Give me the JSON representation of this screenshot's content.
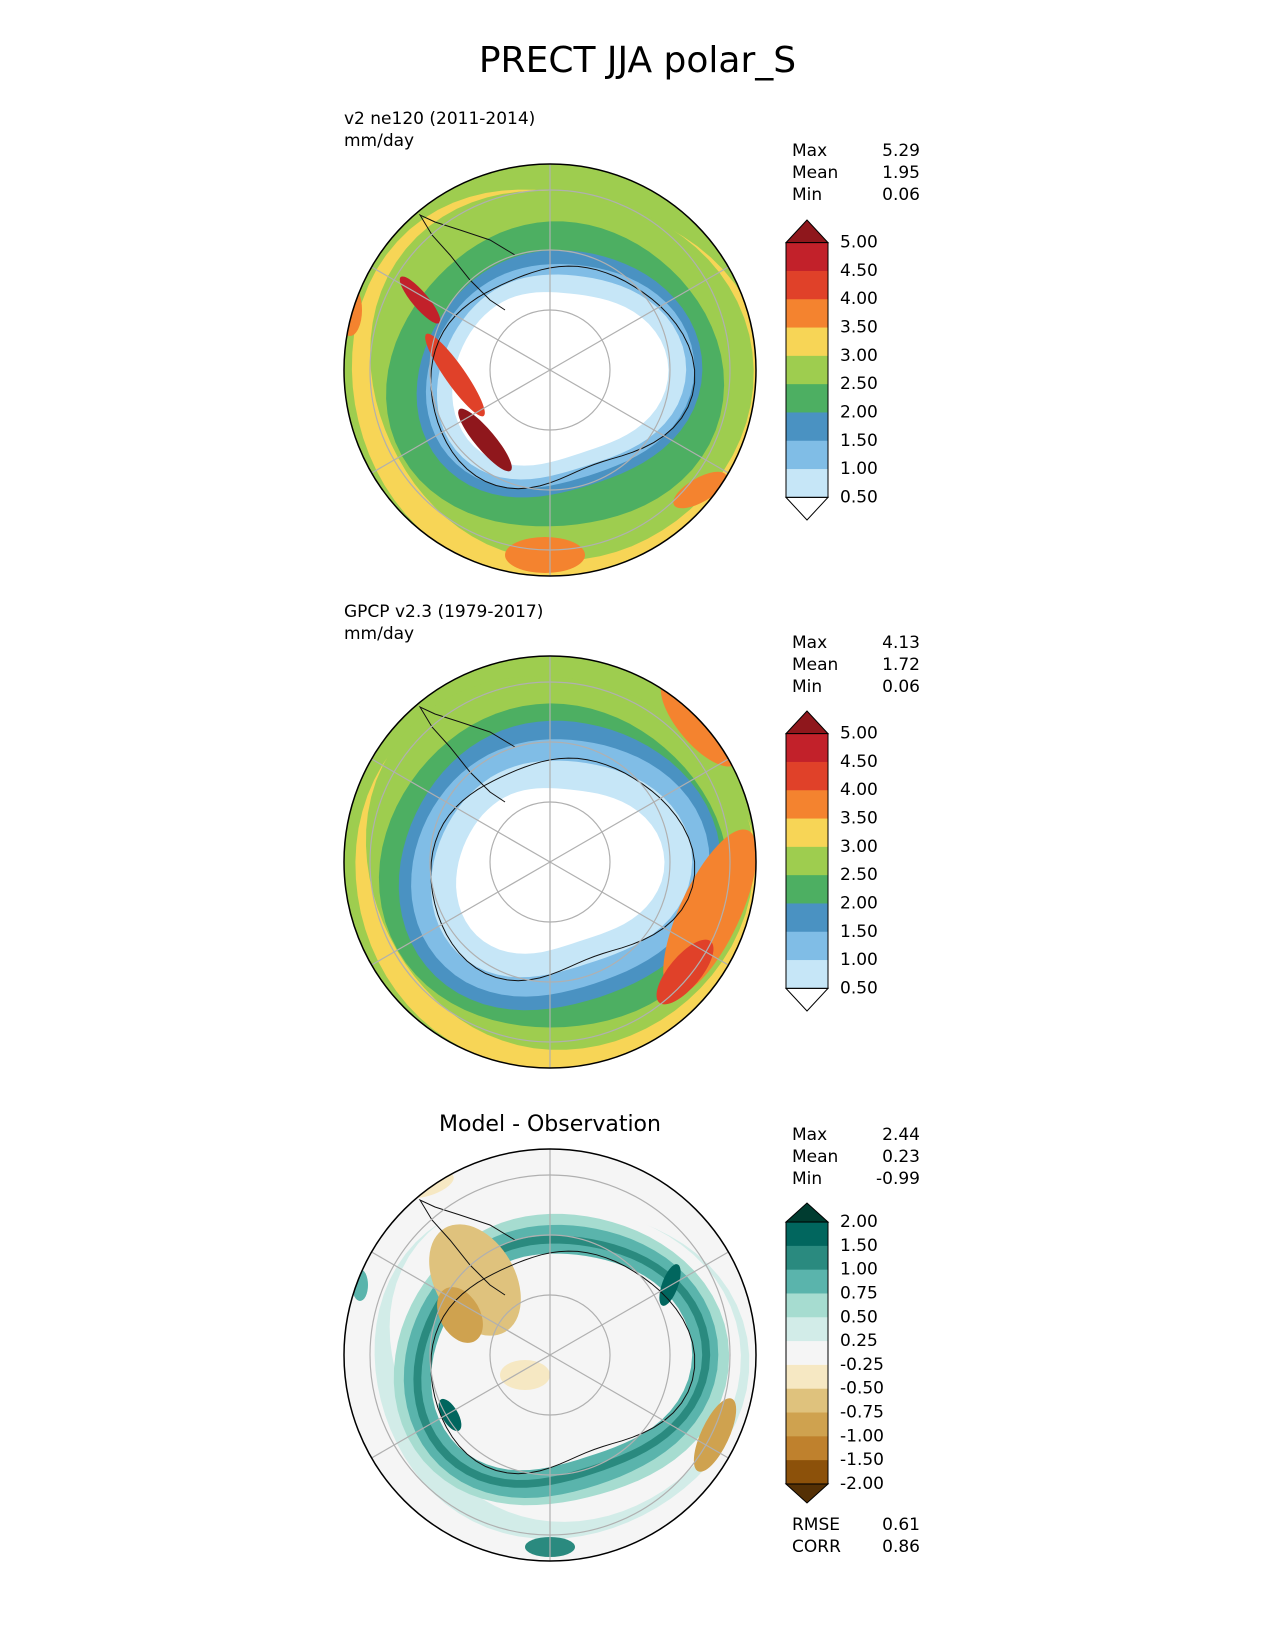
{
  "title": "PRECT JJA polar_S",
  "panels": [
    {
      "label_line1": "v2 ne120 (2011-2014)",
      "label_line2": "mm/day",
      "stats": {
        "max_label": "Max",
        "max": "5.29",
        "mean_label": "Mean",
        "mean": "1.95",
        "min_label": "Min",
        "min": "0.06"
      }
    },
    {
      "label_line1": "GPCP v2.3 (1979-2017)",
      "label_line2": "mm/day",
      "stats": {
        "max_label": "Max",
        "max": "4.13",
        "mean_label": "Mean",
        "mean": "1.72",
        "min_label": "Min",
        "min": "0.06"
      }
    },
    {
      "title": "Model - Observation",
      "stats": {
        "max_label": "Max",
        "max": "2.44",
        "mean_label": "Mean",
        "mean": "0.23",
        "min_label": "Min",
        "min": "-0.99"
      },
      "metrics": {
        "rmse_label": "RMSE",
        "rmse": "0.61",
        "corr_label": "CORR",
        "corr": "0.86"
      }
    }
  ],
  "colorbars": {
    "precip": {
      "ticks": [
        "0.50",
        "1.00",
        "1.50",
        "2.00",
        "2.50",
        "3.00",
        "3.50",
        "4.00",
        "4.50",
        "5.00"
      ],
      "colors": [
        "#ffffff",
        "#c6e6f7",
        "#80bde6",
        "#4a92c2",
        "#4daf62",
        "#9ecd4f",
        "#f7d556",
        "#f4832f",
        "#e04129",
        "#c2212a",
        "#8f171c"
      ]
    },
    "diff": {
      "ticks": [
        "-2.00",
        "-1.50",
        "-1.00",
        "-0.75",
        "-0.50",
        "-0.25",
        "0.25",
        "0.50",
        "0.75",
        "1.00",
        "1.50",
        "2.00"
      ],
      "colors": [
        "#543005",
        "#8c510a",
        "#bf812d",
        "#cfa24f",
        "#dfc27d",
        "#f6e8c3",
        "#f5f5f5",
        "#d2ece8",
        "#a6dcd0",
        "#5ab4ac",
        "#2a8a7f",
        "#01665e",
        "#003c30"
      ]
    }
  }
}
